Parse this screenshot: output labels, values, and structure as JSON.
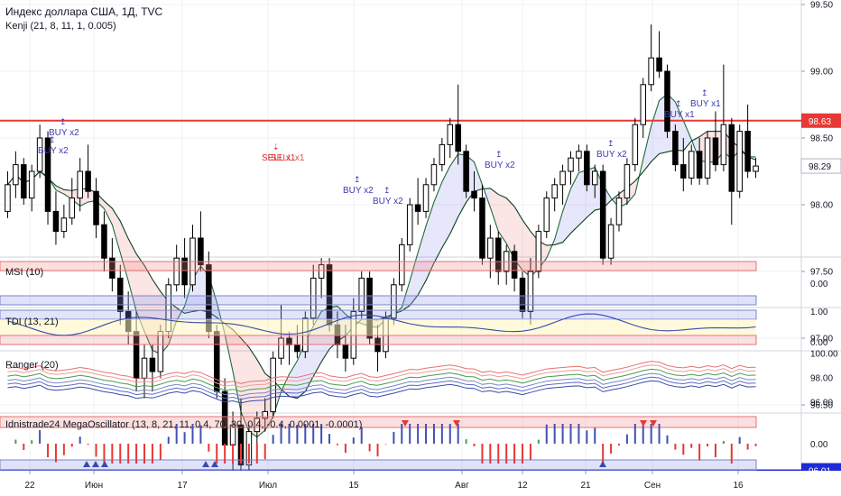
{
  "header": {
    "title": "Индекс доллара США, 1Д, TVC",
    "indicator": "Kenji (21, 8, 11, 1, 0.005)"
  },
  "panes": {
    "msi": "MSI (10)",
    "tdi": "TDI (13, 21)",
    "ranger": "Ranger (20)",
    "osc": "Idnistrade24 MegaOscillator (13, 8, 21, 11, 0.4, 70, 30, 0.4, -0.4, 0.0001, -0.0001)"
  },
  "price_axis": {
    "ticks": [
      "99.50",
      "99.00",
      "98.50",
      "98.00",
      "97.50",
      "97.00",
      "96.50"
    ],
    "badges": [
      {
        "label": "98.63",
        "value": 98.63,
        "color": "#e53935"
      },
      {
        "label": "96.01",
        "value": 96.01,
        "color": "#1f2bd6"
      }
    ],
    "last": "98.29"
  },
  "msi_axis": {
    "ticks": [
      "0.00"
    ]
  },
  "tdi_axis": {
    "ticks": [
      "1.00",
      "0.00"
    ]
  },
  "ranger_axis": {
    "ticks": [
      "100.00",
      "98.00",
      "96.00"
    ]
  },
  "osc_axis": {
    "ticks": [
      "0.00"
    ]
  },
  "time_axis": [
    "22",
    "Июн",
    "17",
    "Июл",
    "15",
    "Авг",
    "12",
    "21",
    "Сен",
    "16"
  ],
  "signals": [
    {
      "label": "BUY x2"
    },
    {
      "label": "BUY x2"
    },
    {
      "label": "SELL x1"
    },
    {
      "label": "BUY x2"
    },
    {
      "label": "BUY x2"
    },
    {
      "label": "BUY x2"
    },
    {
      "label": "BUY x2"
    },
    {
      "label": "BUY x1"
    },
    {
      "label": "BUY x1"
    }
  ],
  "colors": {
    "up": "#ffffff",
    "down": "#000000",
    "support": "#1f2bd6",
    "resistance": "#e53935",
    "grid": "#eef0f3"
  },
  "chart_data": {
    "type": "candlestick",
    "title": "Индекс доллара США, 1Д, TVC",
    "ylim": [
      96.0,
      99.6
    ],
    "levels": [
      98.63,
      96.01
    ],
    "ohlc": [
      [
        97.95,
        98.25,
        97.9,
        98.15
      ],
      [
        98.15,
        98.4,
        98.05,
        98.3
      ],
      [
        98.3,
        98.35,
        98.0,
        98.05
      ],
      [
        98.05,
        98.3,
        97.95,
        98.25
      ],
      [
        98.25,
        98.6,
        98.2,
        98.5
      ],
      [
        98.5,
        98.55,
        97.85,
        97.95
      ],
      [
        97.95,
        98.1,
        97.7,
        97.8
      ],
      [
        97.8,
        98.0,
        97.75,
        97.9
      ],
      [
        97.9,
        98.2,
        97.85,
        98.05
      ],
      [
        98.05,
        98.35,
        97.95,
        98.25
      ],
      [
        98.25,
        98.45,
        98.05,
        98.1
      ],
      [
        98.1,
        98.2,
        97.75,
        97.85
      ],
      [
        97.85,
        97.95,
        97.5,
        97.6
      ],
      [
        97.6,
        97.75,
        97.35,
        97.45
      ],
      [
        97.45,
        97.55,
        97.1,
        97.2
      ],
      [
        97.2,
        97.35,
        96.95,
        97.05
      ],
      [
        97.05,
        97.2,
        96.6,
        96.7
      ],
      [
        96.7,
        96.95,
        96.55,
        96.85
      ],
      [
        96.85,
        96.95,
        96.6,
        96.75
      ],
      [
        96.75,
        97.1,
        96.7,
        97.05
      ],
      [
        97.05,
        97.45,
        97.0,
        97.4
      ],
      [
        97.4,
        97.7,
        97.35,
        97.6
      ],
      [
        97.6,
        97.75,
        97.3,
        97.4
      ],
      [
        97.4,
        97.85,
        97.35,
        97.75
      ],
      [
        97.75,
        97.95,
        97.5,
        97.55
      ],
      [
        97.55,
        97.65,
        97.0,
        97.05
      ],
      [
        97.05,
        97.1,
        96.55,
        96.6
      ],
      [
        96.6,
        96.7,
        96.1,
        96.2
      ],
      [
        96.2,
        96.45,
        96.0,
        96.35
      ],
      [
        96.35,
        96.55,
        95.95,
        96.05
      ],
      [
        96.05,
        96.35,
        96.0,
        96.3
      ],
      [
        96.3,
        96.45,
        96.2,
        96.4
      ],
      [
        96.4,
        96.55,
        96.3,
        96.45
      ],
      [
        96.45,
        96.9,
        96.4,
        96.85
      ],
      [
        96.85,
        97.25,
        96.8,
        97.0
      ],
      [
        97.0,
        97.05,
        96.8,
        96.95
      ],
      [
        96.95,
        97.1,
        96.85,
        96.9
      ],
      [
        96.9,
        97.2,
        96.85,
        97.15
      ],
      [
        97.15,
        97.55,
        97.1,
        97.45
      ],
      [
        97.45,
        97.6,
        97.3,
        97.55
      ],
      [
        97.55,
        97.6,
        97.05,
        97.1
      ],
      [
        97.1,
        97.2,
        96.85,
        96.95
      ],
      [
        96.95,
        97.1,
        96.75,
        96.85
      ],
      [
        96.85,
        97.3,
        96.8,
        97.2
      ],
      [
        97.2,
        97.5,
        97.15,
        97.45
      ],
      [
        97.45,
        97.5,
        96.95,
        97.0
      ],
      [
        97.0,
        97.1,
        96.75,
        96.9
      ],
      [
        96.9,
        97.2,
        96.85,
        97.15
      ],
      [
        97.15,
        97.45,
        97.1,
        97.4
      ],
      [
        97.4,
        97.75,
        97.35,
        97.7
      ],
      [
        97.7,
        98.05,
        97.65,
        98.0
      ],
      [
        98.0,
        98.2,
        97.85,
        97.95
      ],
      [
        97.95,
        98.2,
        97.9,
        98.15
      ],
      [
        98.15,
        98.35,
        98.1,
        98.3
      ],
      [
        98.3,
        98.5,
        98.25,
        98.45
      ],
      [
        98.45,
        98.65,
        98.35,
        98.6
      ],
      [
        98.6,
        98.9,
        98.3,
        98.4
      ],
      [
        98.4,
        98.45,
        98.05,
        98.1
      ],
      [
        98.1,
        98.25,
        97.95,
        98.05
      ],
      [
        98.05,
        98.15,
        97.55,
        97.6
      ],
      [
        97.6,
        97.85,
        97.45,
        97.75
      ],
      [
        97.75,
        97.8,
        97.4,
        97.5
      ],
      [
        97.5,
        97.7,
        97.4,
        97.65
      ],
      [
        97.65,
        97.7,
        97.35,
        97.45
      ],
      [
        97.45,
        97.5,
        97.15,
        97.2
      ],
      [
        97.2,
        97.6,
        97.1,
        97.5
      ],
      [
        97.5,
        97.85,
        97.45,
        97.8
      ],
      [
        97.8,
        98.1,
        97.75,
        98.05
      ],
      [
        98.05,
        98.2,
        97.95,
        98.15
      ],
      [
        98.15,
        98.3,
        98.0,
        98.25
      ],
      [
        98.25,
        98.4,
        98.15,
        98.35
      ],
      [
        98.35,
        98.45,
        98.25,
        98.4
      ],
      [
        98.4,
        98.45,
        98.1,
        98.15
      ],
      [
        98.15,
        98.3,
        98.05,
        98.25
      ],
      [
        98.25,
        98.3,
        97.55,
        97.6
      ],
      [
        97.6,
        97.9,
        97.55,
        97.85
      ],
      [
        97.85,
        98.1,
        97.8,
        98.05
      ],
      [
        98.05,
        98.35,
        98.0,
        98.3
      ],
      [
        98.3,
        98.65,
        98.25,
        98.6
      ],
      [
        98.6,
        98.95,
        98.5,
        98.9
      ],
      [
        98.9,
        99.35,
        98.85,
        99.1
      ],
      [
        99.1,
        99.3,
        98.95,
        99.0
      ],
      [
        99.0,
        99.05,
        98.5,
        98.55
      ],
      [
        98.55,
        98.6,
        98.25,
        98.3
      ],
      [
        98.3,
        98.5,
        98.1,
        98.2
      ],
      [
        98.2,
        98.45,
        98.15,
        98.4
      ],
      [
        98.4,
        98.5,
        98.15,
        98.2
      ],
      [
        98.2,
        98.55,
        98.15,
        98.5
      ],
      [
        98.5,
        98.7,
        98.25,
        98.3
      ],
      [
        98.3,
        99.05,
        98.25,
        98.6
      ],
      [
        98.6,
        98.65,
        97.85,
        98.1
      ],
      [
        98.1,
        98.6,
        98.05,
        98.55
      ],
      [
        98.55,
        98.75,
        98.2,
        98.25
      ],
      [
        98.25,
        98.35,
        98.2,
        98.29
      ]
    ]
  }
}
